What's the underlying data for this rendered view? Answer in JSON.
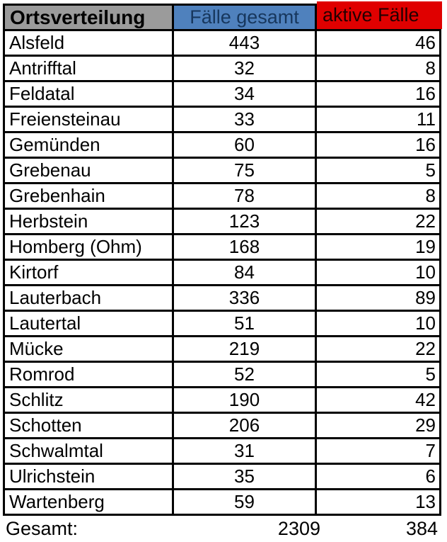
{
  "table": {
    "headers": {
      "place": "Ortsverteilung",
      "total": "Fälle gesamt",
      "active": "aktive Fälle"
    },
    "colors": {
      "place_header_bg": "#9b9b9b",
      "total_header_bg": "#4f81bd",
      "total_header_text": "#17375d",
      "active_header_bg": "#e00000",
      "active_header_text": "#240000",
      "border": "#000000",
      "cell_bg": "#ffffff"
    },
    "rows": [
      {
        "name": "Alsfeld",
        "total": 443,
        "active": 46
      },
      {
        "name": "Antrifftal",
        "total": 32,
        "active": 8
      },
      {
        "name": "Feldatal",
        "total": 34,
        "active": 16
      },
      {
        "name": "Freiensteinau",
        "total": 33,
        "active": 11
      },
      {
        "name": "Gemünden",
        "total": 60,
        "active": 16
      },
      {
        "name": "Grebenau",
        "total": 75,
        "active": 5
      },
      {
        "name": "Grebenhain",
        "total": 78,
        "active": 8
      },
      {
        "name": "Herbstein",
        "total": 123,
        "active": 22
      },
      {
        "name": "Homberg (Ohm)",
        "total": 168,
        "active": 19
      },
      {
        "name": "Kirtorf",
        "total": 84,
        "active": 10
      },
      {
        "name": "Lauterbach",
        "total": 336,
        "active": 89
      },
      {
        "name": "Lautertal",
        "total": 51,
        "active": 10
      },
      {
        "name": "Mücke",
        "total": 219,
        "active": 22
      },
      {
        "name": "Romrod",
        "total": 52,
        "active": 5
      },
      {
        "name": "Schlitz",
        "total": 190,
        "active": 42
      },
      {
        "name": "Schotten",
        "total": 206,
        "active": 29
      },
      {
        "name": "Schwalmtal",
        "total": 31,
        "active": 7
      },
      {
        "name": "Ulrichstein",
        "total": 35,
        "active": 6
      },
      {
        "name": "Wartenberg",
        "total": 59,
        "active": 13
      }
    ],
    "footer": {
      "label": "Gesamt:",
      "total": 2309,
      "active": 384
    }
  },
  "chart_data": {
    "type": "table",
    "title": "Ortsverteilung",
    "columns": [
      "Ortsverteilung",
      "Fälle gesamt",
      "aktive Fälle"
    ],
    "categories": [
      "Alsfeld",
      "Antrifftal",
      "Feldatal",
      "Freiensteinau",
      "Gemünden",
      "Grebenau",
      "Grebenhain",
      "Herbstein",
      "Homberg (Ohm)",
      "Kirtorf",
      "Lauterbach",
      "Lautertal",
      "Mücke",
      "Romrod",
      "Schlitz",
      "Schotten",
      "Schwalmtal",
      "Ulrichstein",
      "Wartenberg"
    ],
    "series": [
      {
        "name": "Fälle gesamt",
        "values": [
          443,
          32,
          34,
          33,
          60,
          75,
          78,
          123,
          168,
          84,
          336,
          51,
          219,
          52,
          190,
          206,
          31,
          35,
          59
        ],
        "total": 2309
      },
      {
        "name": "aktive Fälle",
        "values": [
          46,
          8,
          16,
          11,
          16,
          5,
          8,
          22,
          19,
          10,
          89,
          10,
          22,
          5,
          42,
          29,
          7,
          6,
          13
        ],
        "total": 384
      }
    ]
  }
}
